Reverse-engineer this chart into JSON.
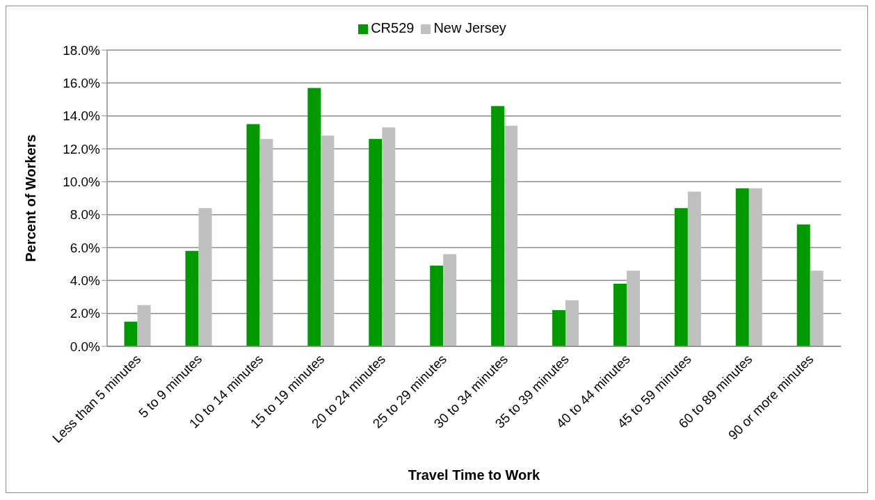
{
  "chart_data": {
    "type": "bar",
    "xlabel": "Travel Time to Work",
    "ylabel": "Percent of Workers",
    "categories": [
      "Less than 5 minutes",
      "5 to 9 minutes",
      "10 to 14 minutes",
      "15 to 19 minutes",
      "20 to 24 minutes",
      "25 to 29 minutes",
      "30 to 34 minutes",
      "35 to 39 minutes",
      "40 to 44 minutes",
      "45 to 59 minutes",
      "60 to 89 minutes",
      "90 or more minutes"
    ],
    "series": [
      {
        "name": "CR529",
        "color": "#009900",
        "values": [
          1.5,
          5.8,
          13.5,
          15.7,
          12.6,
          4.9,
          14.6,
          2.2,
          3.8,
          8.4,
          9.6,
          7.4
        ]
      },
      {
        "name": "New Jersey",
        "color": "#c0c0c0",
        "values": [
          2.5,
          8.4,
          12.6,
          12.8,
          13.3,
          5.6,
          13.4,
          2.8,
          4.6,
          9.4,
          9.6,
          4.6
        ]
      }
    ],
    "ylim": [
      0,
      18
    ],
    "yticks": [
      {
        "value": 0,
        "label": "0.0%"
      },
      {
        "value": 2,
        "label": "2.0%"
      },
      {
        "value": 4,
        "label": "4.0%"
      },
      {
        "value": 6,
        "label": "6.0%"
      },
      {
        "value": 8,
        "label": "8.0%"
      },
      {
        "value": 10,
        "label": "10.0%"
      },
      {
        "value": 12,
        "label": "12.0%"
      },
      {
        "value": 14,
        "label": "14.0%"
      },
      {
        "value": 16,
        "label": "16.0%"
      },
      {
        "value": 18,
        "label": "18.0%"
      }
    ],
    "grid": "y",
    "legend": "top"
  }
}
